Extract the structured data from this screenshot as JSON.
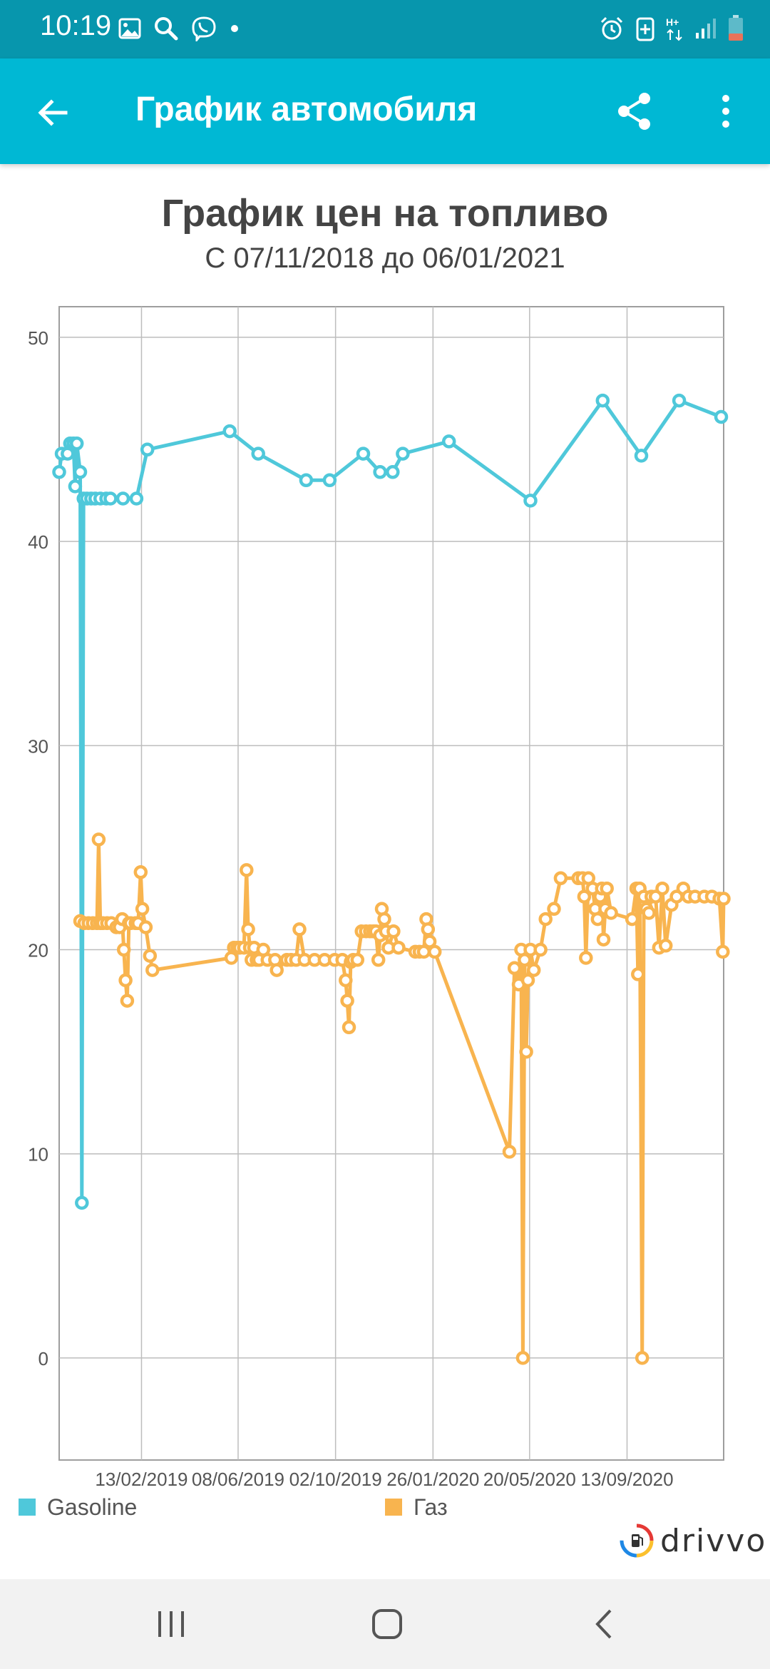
{
  "status_bar": {
    "time": "10:19",
    "left_icons": [
      "image-icon",
      "search-icon",
      "viber-icon",
      "dot-icon"
    ],
    "right_icons": [
      "alarm-icon",
      "data-saver-icon",
      "network-h-plus-icon",
      "signal-icon",
      "battery-icon"
    ]
  },
  "app_bar": {
    "title": "График автомобиля",
    "back_icon": "arrow-back-icon",
    "share_icon": "share-icon",
    "more_icon": "more-vert-icon",
    "color": "#00b8d4"
  },
  "chart": {
    "title": "График цен на топливо",
    "subtitle": "С 07/11/2018 до 06/01/2021"
  },
  "chart_data": {
    "type": "line",
    "title": "График цен на топливо",
    "subtitle": "С 07/11/2018 до 06/01/2021",
    "xlim": [
      "2018-11-07",
      "2021-01-06"
    ],
    "ylim": [
      -5,
      51.5
    ],
    "yticks": [
      0,
      10,
      20,
      30,
      40,
      50
    ],
    "xticks": [
      "13/02/2019",
      "08/06/2019",
      "02/10/2019",
      "26/01/2020",
      "20/05/2020",
      "13/09/2020"
    ],
    "grid": true,
    "legend_position": "bottom",
    "series": [
      {
        "name": "Gasoline",
        "color": "#4fc8da",
        "points": [
          [
            "2018-11-07",
            43.4
          ],
          [
            "2018-11-10",
            44.3
          ],
          [
            "2018-11-17",
            44.3
          ],
          [
            "2018-11-20",
            44.8
          ],
          [
            "2018-11-24",
            44.8
          ],
          [
            "2018-11-26",
            42.7
          ],
          [
            "2018-11-28",
            44.8
          ],
          [
            "2018-12-02",
            43.4
          ],
          [
            "2018-12-04",
            7.6
          ],
          [
            "2018-12-06",
            42.1
          ],
          [
            "2018-12-10",
            42.1
          ],
          [
            "2018-12-15",
            42.1
          ],
          [
            "2018-12-20",
            42.1
          ],
          [
            "2018-12-26",
            42.1
          ],
          [
            "2019-01-02",
            42.1
          ],
          [
            "2019-01-07",
            42.1
          ],
          [
            "2019-01-22",
            42.1
          ],
          [
            "2019-02-07",
            42.1
          ],
          [
            "2019-02-20",
            44.5
          ],
          [
            "2019-05-29",
            45.4
          ],
          [
            "2019-07-02",
            44.3
          ],
          [
            "2019-08-28",
            43.0
          ],
          [
            "2019-09-25",
            43.0
          ],
          [
            "2019-11-04",
            44.3
          ],
          [
            "2019-11-24",
            43.4
          ],
          [
            "2019-12-09",
            43.4
          ],
          [
            "2019-12-21",
            44.3
          ],
          [
            "2020-02-14",
            44.9
          ],
          [
            "2020-05-21",
            42.0
          ],
          [
            "2020-08-15",
            46.9
          ],
          [
            "2020-09-30",
            44.2
          ],
          [
            "2020-11-14",
            46.9
          ],
          [
            "2021-01-03",
            46.1
          ]
        ]
      },
      {
        "name": "Газ",
        "color": "#f8b44f",
        "points": [
          [
            "2018-12-02",
            21.4
          ],
          [
            "2018-12-07",
            21.3
          ],
          [
            "2018-12-12",
            21.3
          ],
          [
            "2018-12-17",
            21.3
          ],
          [
            "2018-12-22",
            21.3
          ],
          [
            "2018-12-24",
            25.4
          ],
          [
            "2018-12-26",
            21.3
          ],
          [
            "2018-12-29",
            21.3
          ],
          [
            "2019-01-03",
            21.3
          ],
          [
            "2019-01-08",
            21.3
          ],
          [
            "2019-01-14",
            21.1
          ],
          [
            "2019-01-18",
            21.1
          ],
          [
            "2019-01-21",
            21.5
          ],
          [
            "2019-01-23",
            20.0
          ],
          [
            "2019-01-25",
            18.5
          ],
          [
            "2019-01-27",
            17.5
          ],
          [
            "2019-01-29",
            21.3
          ],
          [
            "2019-01-31",
            21.3
          ],
          [
            "2019-02-06",
            21.3
          ],
          [
            "2019-02-09",
            21.3
          ],
          [
            "2019-02-12",
            23.8
          ],
          [
            "2019-02-14",
            22.0
          ],
          [
            "2019-02-18",
            21.1
          ],
          [
            "2019-02-23",
            19.7
          ],
          [
            "2019-02-26",
            19.0
          ],
          [
            "2019-05-31",
            19.6
          ],
          [
            "2019-06-03",
            20.1
          ],
          [
            "2019-06-07",
            20.1
          ],
          [
            "2019-06-10",
            20.1
          ],
          [
            "2019-06-15",
            20.1
          ],
          [
            "2019-06-18",
            23.9
          ],
          [
            "2019-06-20",
            21.0
          ],
          [
            "2019-06-22",
            20.1
          ],
          [
            "2019-06-24",
            19.5
          ],
          [
            "2019-06-27",
            20.1
          ],
          [
            "2019-06-30",
            19.5
          ],
          [
            "2019-07-03",
            19.5
          ],
          [
            "2019-07-08",
            20.0
          ],
          [
            "2019-07-13",
            19.5
          ],
          [
            "2019-07-22",
            19.5
          ],
          [
            "2019-07-24",
            19.0
          ],
          [
            "2019-08-05",
            19.5
          ],
          [
            "2019-08-10",
            19.5
          ],
          [
            "2019-08-16",
            19.5
          ],
          [
            "2019-08-20",
            21.0
          ],
          [
            "2019-08-26",
            19.5
          ],
          [
            "2019-09-07",
            19.5
          ],
          [
            "2019-09-19",
            19.5
          ],
          [
            "2019-10-01",
            19.5
          ],
          [
            "2019-10-10",
            19.5
          ],
          [
            "2019-10-14",
            18.5
          ],
          [
            "2019-10-16",
            17.5
          ],
          [
            "2019-10-18",
            16.2
          ],
          [
            "2019-10-20",
            19.4
          ],
          [
            "2019-10-23",
            19.5
          ],
          [
            "2019-10-28",
            19.5
          ],
          [
            "2019-11-02",
            20.9
          ],
          [
            "2019-11-07",
            20.9
          ],
          [
            "2019-11-12",
            20.9
          ],
          [
            "2019-11-16",
            20.9
          ],
          [
            "2019-11-19",
            20.9
          ],
          [
            "2019-11-22",
            19.5
          ],
          [
            "2019-11-24",
            20.7
          ],
          [
            "2019-11-26",
            22.0
          ],
          [
            "2019-11-29",
            21.5
          ],
          [
            "2019-12-01",
            20.9
          ],
          [
            "2019-12-04",
            20.1
          ],
          [
            "2019-12-10",
            20.9
          ],
          [
            "2019-12-16",
            20.1
          ],
          [
            "2020-01-05",
            19.9
          ],
          [
            "2020-01-10",
            19.9
          ],
          [
            "2020-01-15",
            19.9
          ],
          [
            "2020-01-18",
            21.5
          ],
          [
            "2020-01-20",
            21.0
          ],
          [
            "2020-01-22",
            20.4
          ],
          [
            "2020-01-28",
            19.9
          ],
          [
            "2020-04-26",
            10.1
          ],
          [
            "2020-05-02",
            19.1
          ],
          [
            "2020-05-07",
            18.3
          ],
          [
            "2020-05-10",
            20.0
          ],
          [
            "2020-05-12",
            0.0
          ],
          [
            "2020-05-14",
            19.5
          ],
          [
            "2020-05-16",
            15.0
          ],
          [
            "2020-05-18",
            18.5
          ],
          [
            "2020-05-21",
            20.0
          ],
          [
            "2020-05-25",
            19.0
          ],
          [
            "2020-06-02",
            20.0
          ],
          [
            "2020-06-08",
            21.5
          ],
          [
            "2020-06-18",
            22.0
          ],
          [
            "2020-06-26",
            23.5
          ],
          [
            "2020-07-17",
            23.5
          ],
          [
            "2020-07-22",
            23.5
          ],
          [
            "2020-07-24",
            22.6
          ],
          [
            "2020-07-26",
            19.6
          ],
          [
            "2020-07-29",
            23.5
          ],
          [
            "2020-08-03",
            23.0
          ],
          [
            "2020-08-06",
            22.0
          ],
          [
            "2020-08-09",
            21.5
          ],
          [
            "2020-08-12",
            22.6
          ],
          [
            "2020-08-14",
            23.0
          ],
          [
            "2020-08-16",
            20.5
          ],
          [
            "2020-08-18",
            22.0
          ],
          [
            "2020-08-20",
            23.0
          ],
          [
            "2020-08-25",
            21.8
          ],
          [
            "2020-09-19",
            21.5
          ],
          [
            "2020-09-24",
            23.0
          ],
          [
            "2020-09-26",
            18.8
          ],
          [
            "2020-09-28",
            23.0
          ],
          [
            "2020-10-01",
            0.0
          ],
          [
            "2020-10-03",
            22.6
          ],
          [
            "2020-10-06",
            22.0
          ],
          [
            "2020-10-09",
            21.8
          ],
          [
            "2020-10-12",
            22.6
          ],
          [
            "2020-10-17",
            22.6
          ],
          [
            "2020-10-21",
            20.1
          ],
          [
            "2020-10-25",
            23.0
          ],
          [
            "2020-10-29",
            20.2
          ],
          [
            "2020-11-05",
            22.2
          ],
          [
            "2020-11-11",
            22.6
          ],
          [
            "2020-11-19",
            23.0
          ],
          [
            "2020-11-25",
            22.6
          ],
          [
            "2020-12-03",
            22.6
          ],
          [
            "2020-12-14",
            22.6
          ],
          [
            "2020-12-23",
            22.6
          ],
          [
            "2021-01-01",
            22.5
          ],
          [
            "2021-01-05",
            19.9
          ],
          [
            "2021-01-06",
            22.5
          ]
        ]
      }
    ]
  },
  "legend": {
    "items": [
      {
        "label": "Gasoline",
        "color": "#4fc8da"
      },
      {
        "label": "Газ",
        "color": "#f8b44f"
      }
    ]
  },
  "brand": {
    "name": "drivvo",
    "icon": "drivvo-logo-icon"
  },
  "nav_bar": {
    "recent_icon": "recent-apps-icon",
    "home_icon": "home-icon",
    "back_icon": "nav-back-icon"
  }
}
